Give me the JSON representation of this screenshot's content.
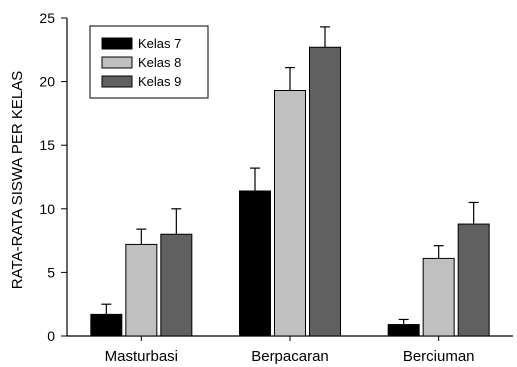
{
  "chart_data": {
    "type": "bar",
    "title": "",
    "xlabel": "",
    "ylabel": "RATA-RATA SISWA PER KELAS",
    "ylim": [
      0,
      25
    ],
    "yticks": [
      0,
      5,
      10,
      15,
      20,
      25
    ],
    "categories": [
      "Masturbasi",
      "Berpacaran",
      "Berciuman"
    ],
    "series": [
      {
        "name": "Kelas 7",
        "color": "#000000",
        "values": [
          1.7,
          11.4,
          0.9
        ],
        "errors": [
          0.8,
          1.8,
          0.4
        ]
      },
      {
        "name": "Kelas 8",
        "color": "#c0c0c0",
        "values": [
          7.2,
          19.3,
          6.1
        ],
        "errors": [
          1.2,
          1.8,
          1.0
        ]
      },
      {
        "name": "Kelas 9",
        "color": "#606060",
        "values": [
          8.0,
          22.7,
          8.8
        ],
        "errors": [
          2.0,
          1.6,
          1.7
        ]
      }
    ],
    "legend_position": "top-left",
    "grid": false,
    "error_bars": "upper"
  }
}
